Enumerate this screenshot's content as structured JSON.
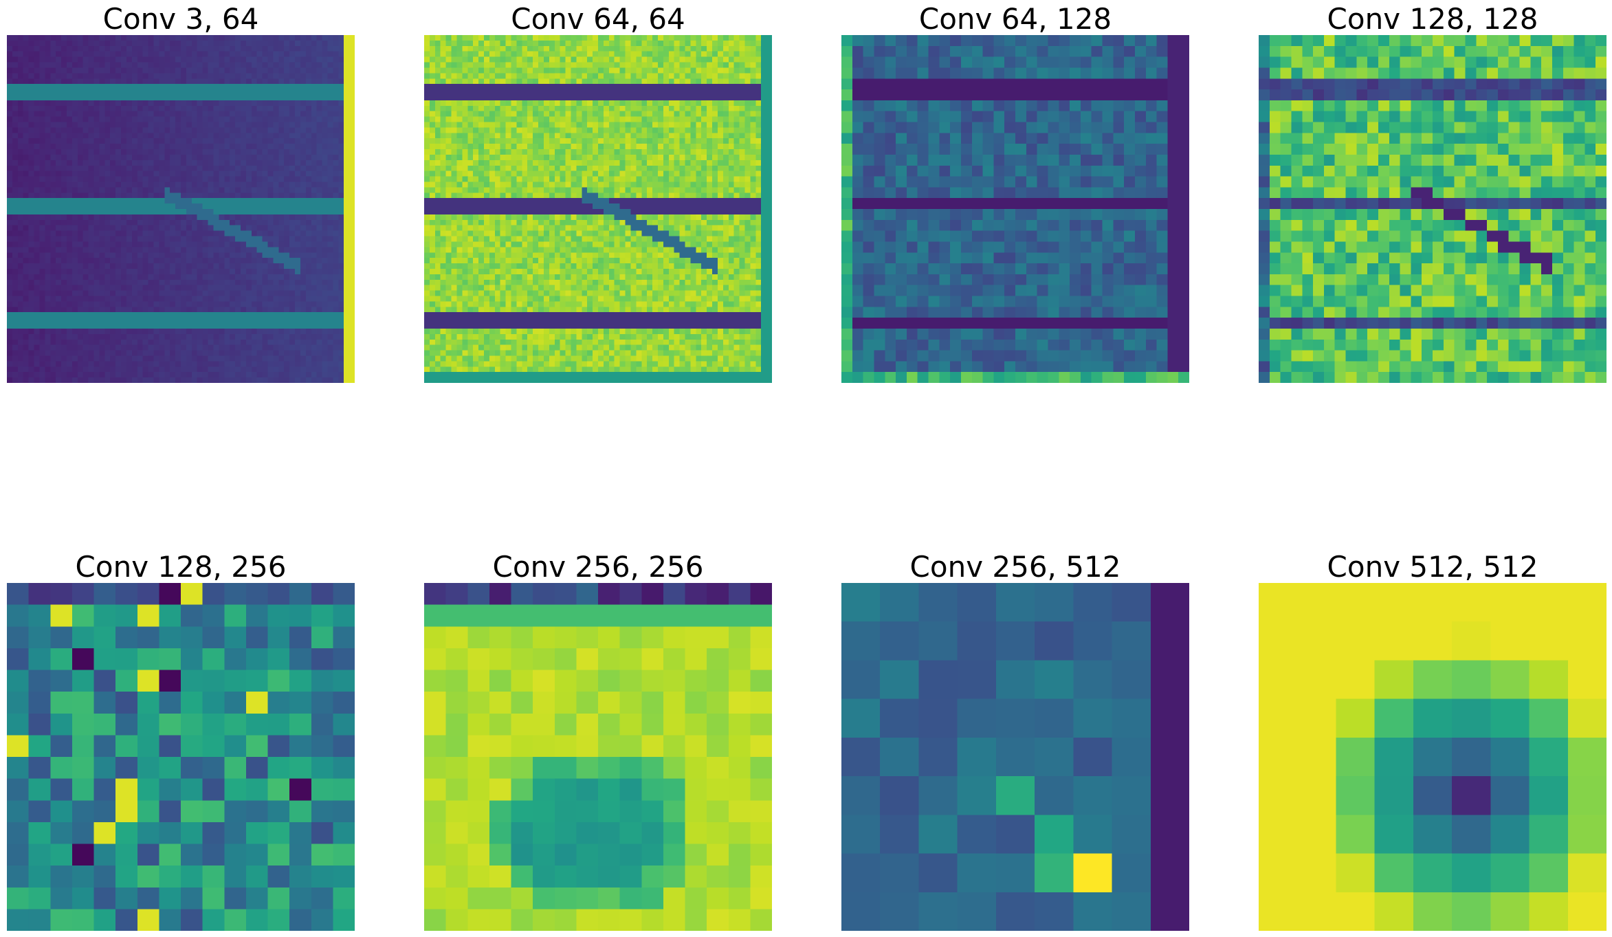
{
  "figure": {
    "panels": [
      {
        "title": "Conv 3, 64",
        "grid": 64,
        "style": "smooth-dark",
        "colormap": "viridis"
      },
      {
        "title": "Conv 64, 64",
        "grid": 64,
        "style": "smooth-bright",
        "colormap": "viridis"
      },
      {
        "title": "Conv 64, 128",
        "grid": 32,
        "style": "noisy-dark",
        "colormap": "viridis"
      },
      {
        "title": "Conv 128, 128",
        "grid": 32,
        "style": "noisy-bright",
        "colormap": "viridis"
      },
      {
        "title": "Conv 128, 256",
        "grid": 16,
        "style": "random-mid",
        "colormap": "viridis"
      },
      {
        "title": "Conv 256, 256",
        "grid": 16,
        "style": "blob-bright",
        "colormap": "viridis"
      },
      {
        "title": "Conv 256, 512",
        "grid": 9,
        "style": "blocks-dark",
        "colormap": "viridis"
      },
      {
        "title": "Conv 512, 512",
        "grid": 9,
        "style": "center-dip",
        "colormap": "viridis"
      }
    ]
  }
}
